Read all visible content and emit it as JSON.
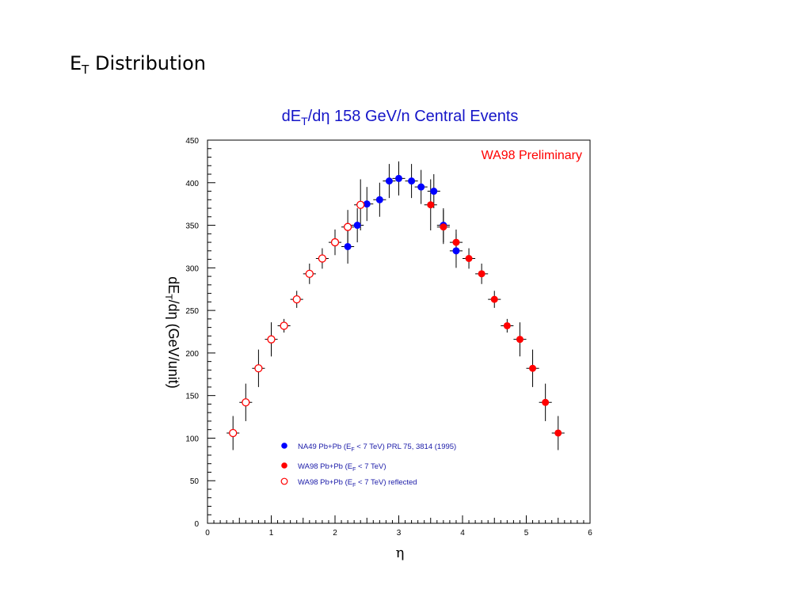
{
  "slide": {
    "title_main": "E",
    "title_sub": "T",
    "title_rest": " Distribution"
  },
  "chart_data": {
    "type": "scatter",
    "title": {
      "pre": "dE",
      "sub": "T",
      "post": "/dη 158 GeV/n Central Events"
    },
    "annotation": "WA98 Preliminary",
    "xlabel": "η",
    "ylabel": {
      "pre": "dE",
      "sub": "T",
      "post": "/dη (GeV/unit)"
    },
    "xlim": [
      0,
      6
    ],
    "ylim": [
      0,
      450
    ],
    "xticks": [
      0,
      1,
      2,
      3,
      4,
      5,
      6
    ],
    "yticks": [
      0,
      50,
      100,
      150,
      200,
      250,
      300,
      350,
      400,
      450
    ],
    "grid": false,
    "legend_position": "bottom-left",
    "series": [
      {
        "name": {
          "pre": "NA49 Pb+Pb (E",
          "sub": "F",
          "post": " < 7 TeV) PRL 75, 3814 (1995)"
        },
        "marker": "filled-circle",
        "color": "#0000ff",
        "points": [
          {
            "x": 2.2,
            "y": 325,
            "err": 20
          },
          {
            "x": 2.35,
            "y": 350,
            "err": 20
          },
          {
            "x": 2.5,
            "y": 375,
            "err": 20
          },
          {
            "x": 2.7,
            "y": 380,
            "err": 20
          },
          {
            "x": 2.85,
            "y": 402,
            "err": 20
          },
          {
            "x": 3.0,
            "y": 405,
            "err": 20
          },
          {
            "x": 3.2,
            "y": 402,
            "err": 20
          },
          {
            "x": 3.35,
            "y": 395,
            "err": 20
          },
          {
            "x": 3.55,
            "y": 390,
            "err": 20
          },
          {
            "x": 3.7,
            "y": 350,
            "err": 20
          },
          {
            "x": 3.9,
            "y": 320,
            "err": 20
          }
        ]
      },
      {
        "name": {
          "pre": "WA98 Pb+Pb (E",
          "sub": "F",
          "post": " < 7 TeV)"
        },
        "marker": "filled-circle",
        "color": "#ff0000",
        "points": [
          {
            "x": 3.5,
            "y": 374,
            "err": 30
          },
          {
            "x": 3.7,
            "y": 348,
            "err": 20
          },
          {
            "x": 3.9,
            "y": 330,
            "err": 15
          },
          {
            "x": 4.1,
            "y": 311,
            "err": 12
          },
          {
            "x": 4.3,
            "y": 293,
            "err": 12
          },
          {
            "x": 4.5,
            "y": 263,
            "err": 10
          },
          {
            "x": 4.7,
            "y": 232,
            "err": 8
          },
          {
            "x": 4.9,
            "y": 216,
            "err": 20
          },
          {
            "x": 5.1,
            "y": 182,
            "err": 22
          },
          {
            "x": 5.3,
            "y": 142,
            "err": 22
          },
          {
            "x": 5.5,
            "y": 106,
            "err": 20
          }
        ]
      },
      {
        "name": {
          "pre": "WA98 Pb+Pb (E",
          "sub": "F",
          "post": " < 7 TeV) reflected"
        },
        "marker": "open-circle",
        "color": "#ff0000",
        "points": [
          {
            "x": 0.4,
            "y": 106,
            "err": 20
          },
          {
            "x": 0.6,
            "y": 142,
            "err": 22
          },
          {
            "x": 0.8,
            "y": 182,
            "err": 22
          },
          {
            "x": 1.0,
            "y": 216,
            "err": 20
          },
          {
            "x": 1.2,
            "y": 232,
            "err": 8
          },
          {
            "x": 1.4,
            "y": 263,
            "err": 10
          },
          {
            "x": 1.6,
            "y": 293,
            "err": 12
          },
          {
            "x": 1.8,
            "y": 311,
            "err": 12
          },
          {
            "x": 2.0,
            "y": 330,
            "err": 15
          },
          {
            "x": 2.2,
            "y": 348,
            "err": 20
          },
          {
            "x": 2.4,
            "y": 374,
            "err": 30
          }
        ]
      }
    ]
  }
}
